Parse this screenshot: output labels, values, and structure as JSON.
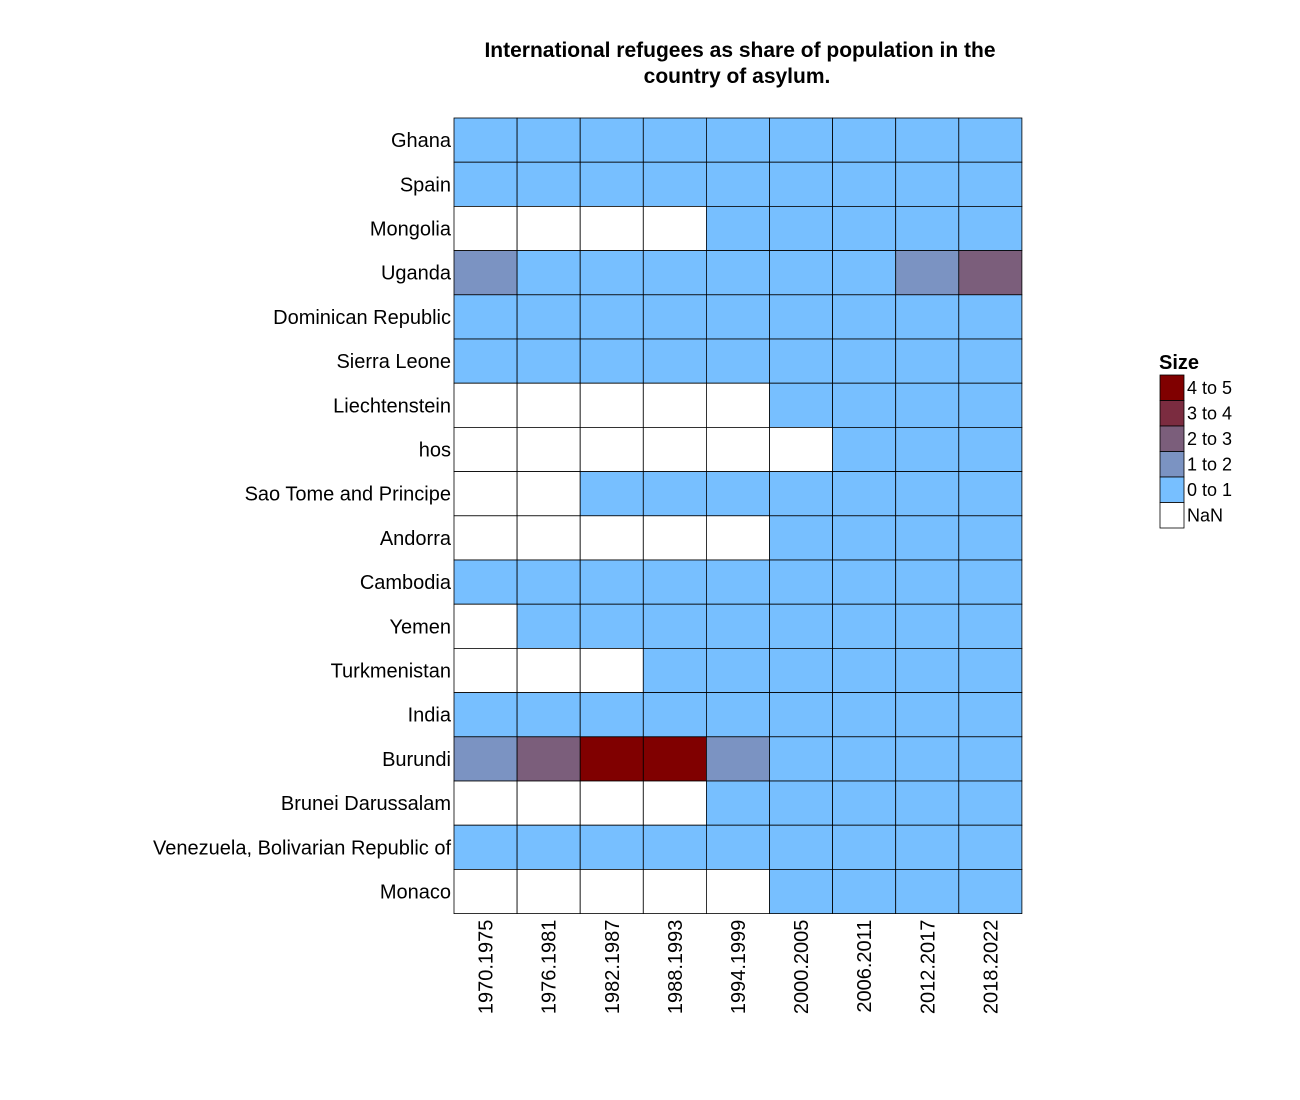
{
  "chart_data": {
    "type": "heatmap",
    "title_lines": [
      "International refugees as share of population in the",
      "country of asylum."
    ],
    "xlabel": "",
    "ylabel": "",
    "categories_x": [
      "1970.1975",
      "1976.1981",
      "1982.1987",
      "1988.1993",
      "1994.1999",
      "2000.2005",
      "2006.2011",
      "2012.2017",
      "2018.2022"
    ],
    "categories_y": [
      "Ghana",
      "Spain",
      "Mongolia",
      "Uganda",
      "Dominican Republic",
      "Sierra Leone",
      "Liechtenstein",
      "hos",
      "Sao Tome and Principe",
      "Andorra",
      "Cambodia",
      "Yemen",
      "Turkmenistan",
      "India",
      "Burundi",
      "Brunei Darussalam",
      "Venezuela, Bolivarian Republic of",
      "Monaco"
    ],
    "bins": [
      "NaN",
      "0 to 1",
      "1 to 2",
      "2 to 3",
      "3 to 4",
      "4 to 5"
    ],
    "values": [
      [
        "0 to 1",
        "0 to 1",
        "0 to 1",
        "0 to 1",
        "0 to 1",
        "0 to 1",
        "0 to 1",
        "0 to 1",
        "0 to 1"
      ],
      [
        "0 to 1",
        "0 to 1",
        "0 to 1",
        "0 to 1",
        "0 to 1",
        "0 to 1",
        "0 to 1",
        "0 to 1",
        "0 to 1"
      ],
      [
        "NaN",
        "NaN",
        "NaN",
        "NaN",
        "0 to 1",
        "0 to 1",
        "0 to 1",
        "0 to 1",
        "0 to 1"
      ],
      [
        "1 to 2",
        "0 to 1",
        "0 to 1",
        "0 to 1",
        "0 to 1",
        "0 to 1",
        "0 to 1",
        "1 to 2",
        "2 to 3"
      ],
      [
        "0 to 1",
        "0 to 1",
        "0 to 1",
        "0 to 1",
        "0 to 1",
        "0 to 1",
        "0 to 1",
        "0 to 1",
        "0 to 1"
      ],
      [
        "0 to 1",
        "0 to 1",
        "0 to 1",
        "0 to 1",
        "0 to 1",
        "0 to 1",
        "0 to 1",
        "0 to 1",
        "0 to 1"
      ],
      [
        "NaN",
        "NaN",
        "NaN",
        "NaN",
        "NaN",
        "0 to 1",
        "0 to 1",
        "0 to 1",
        "0 to 1"
      ],
      [
        "NaN",
        "NaN",
        "NaN",
        "NaN",
        "NaN",
        "NaN",
        "0 to 1",
        "0 to 1",
        "0 to 1"
      ],
      [
        "NaN",
        "NaN",
        "0 to 1",
        "0 to 1",
        "0 to 1",
        "0 to 1",
        "0 to 1",
        "0 to 1",
        "0 to 1"
      ],
      [
        "NaN",
        "NaN",
        "NaN",
        "NaN",
        "NaN",
        "0 to 1",
        "0 to 1",
        "0 to 1",
        "0 to 1"
      ],
      [
        "0 to 1",
        "0 to 1",
        "0 to 1",
        "0 to 1",
        "0 to 1",
        "0 to 1",
        "0 to 1",
        "0 to 1",
        "0 to 1"
      ],
      [
        "NaN",
        "0 to 1",
        "0 to 1",
        "0 to 1",
        "0 to 1",
        "0 to 1",
        "0 to 1",
        "0 to 1",
        "0 to 1"
      ],
      [
        "NaN",
        "NaN",
        "NaN",
        "0 to 1",
        "0 to 1",
        "0 to 1",
        "0 to 1",
        "0 to 1",
        "0 to 1"
      ],
      [
        "0 to 1",
        "0 to 1",
        "0 to 1",
        "0 to 1",
        "0 to 1",
        "0 to 1",
        "0 to 1",
        "0 to 1",
        "0 to 1"
      ],
      [
        "1 to 2",
        "2 to 3",
        "4 to 5",
        "4 to 5",
        "1 to 2",
        "0 to 1",
        "0 to 1",
        "0 to 1",
        "0 to 1"
      ],
      [
        "NaN",
        "NaN",
        "NaN",
        "NaN",
        "0 to 1",
        "0 to 1",
        "0 to 1",
        "0 to 1",
        "0 to 1"
      ],
      [
        "0 to 1",
        "0 to 1",
        "0 to 1",
        "0 to 1",
        "0 to 1",
        "0 to 1",
        "0 to 1",
        "0 to 1",
        "0 to 1"
      ],
      [
        "NaN",
        "NaN",
        "NaN",
        "NaN",
        "NaN",
        "0 to 1",
        "0 to 1",
        "0 to 1",
        "0 to 1"
      ]
    ],
    "legend": {
      "title": "Size",
      "placement": "right",
      "entries": [
        {
          "label": "4 to 5",
          "color": "#800000"
        },
        {
          "label": "3 to 4",
          "color": "#7b2c40"
        },
        {
          "label": "2 to 3",
          "color": "#7b5e7b"
        },
        {
          "label": "1 to 2",
          "color": "#7b93c2"
        },
        {
          "label": "0 to 1",
          "color": "#77bfff"
        },
        {
          "label": "NaN",
          "color": "#ffffff"
        }
      ]
    },
    "bin_colors": {
      "NaN": "#ffffff",
      "0 to 1": "#77bfff",
      "1 to 2": "#7b93c2",
      "2 to 3": "#7b5e7b",
      "3 to 4": "#7b2c40",
      "4 to 5": "#800000"
    },
    "grid": true
  }
}
